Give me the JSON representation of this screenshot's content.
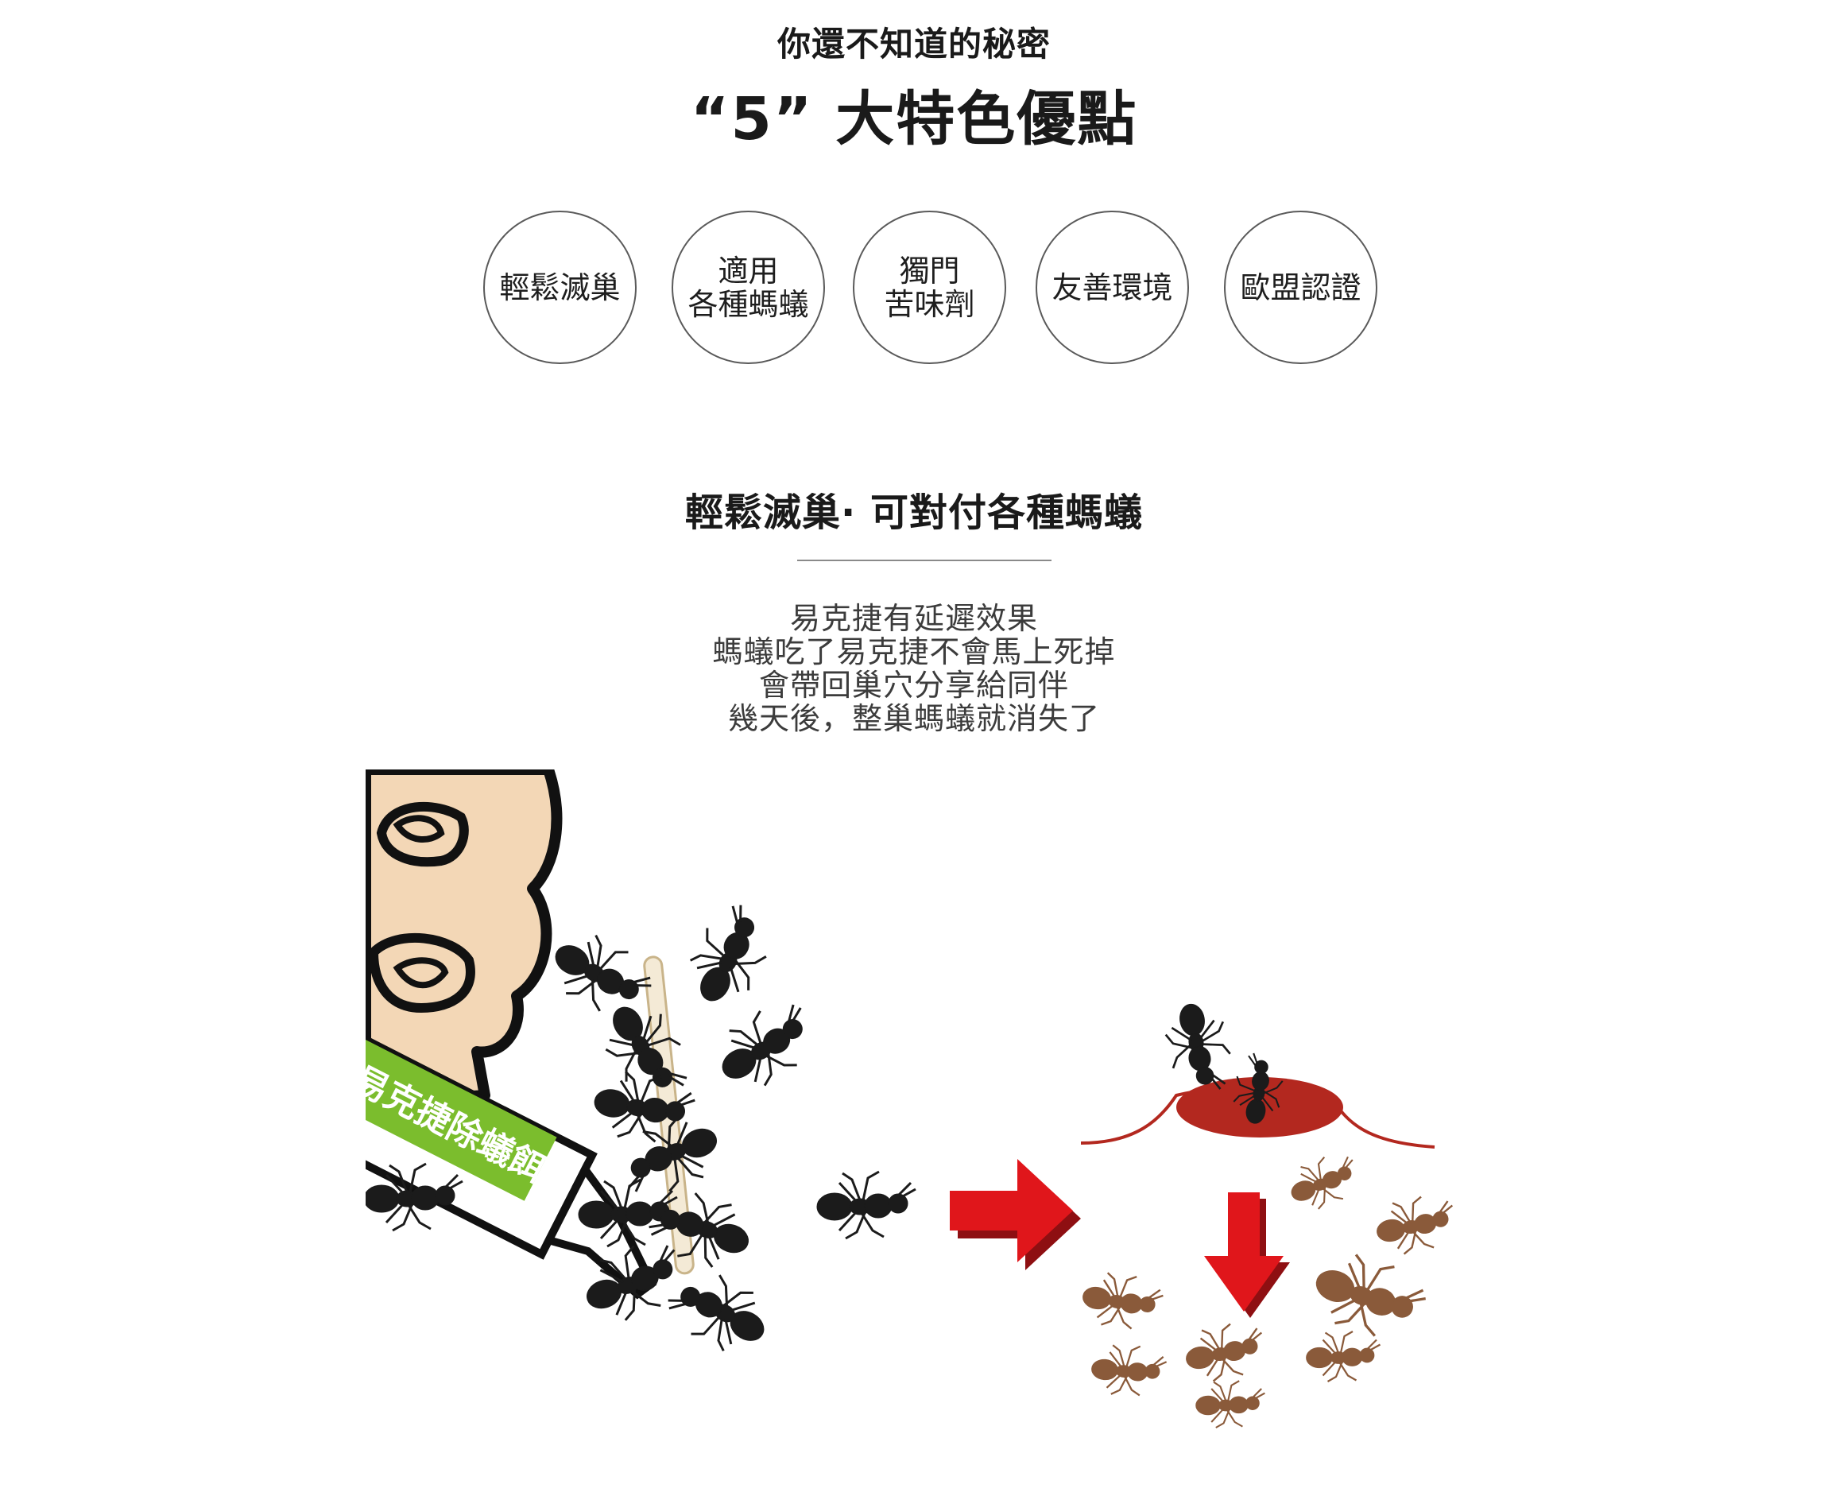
{
  "header": {
    "kicker": "你還不知道的秘密",
    "headline": "“5” 大特色優點"
  },
  "features": [
    {
      "lines": [
        "輕鬆滅巢"
      ]
    },
    {
      "lines": [
        "適用",
        "各種螞蟻"
      ]
    },
    {
      "lines": [
        "獨門",
        "苦味劑"
      ]
    },
    {
      "lines": [
        "友善環境"
      ]
    },
    {
      "lines": [
        "歐盟認證"
      ]
    }
  ],
  "section": {
    "title": "輕鬆滅巢· 可對付各種螞蟻",
    "description": [
      "易克捷有延遲效果",
      "螞蟻吃了易克捷不會馬上死掉",
      "會帶回巢穴分享給同伴",
      "幾天後，整巢螞蟻就消失了"
    ]
  },
  "illustration": {
    "product_label": "易克捷除蟻餌膠",
    "colors": {
      "skin": "#f3d7b6",
      "tube_green": "#7bbd2d",
      "ant_black": "#1b1b1b",
      "ant_brown": "#8a5a3a",
      "arrow_red": "#e0161b",
      "nest_red": "#b3281f"
    },
    "icons": [
      "hand-icon",
      "bait-tube-icon",
      "ant-icon",
      "right-arrow-icon",
      "down-arrow-icon",
      "ant-nest-icon"
    ]
  }
}
